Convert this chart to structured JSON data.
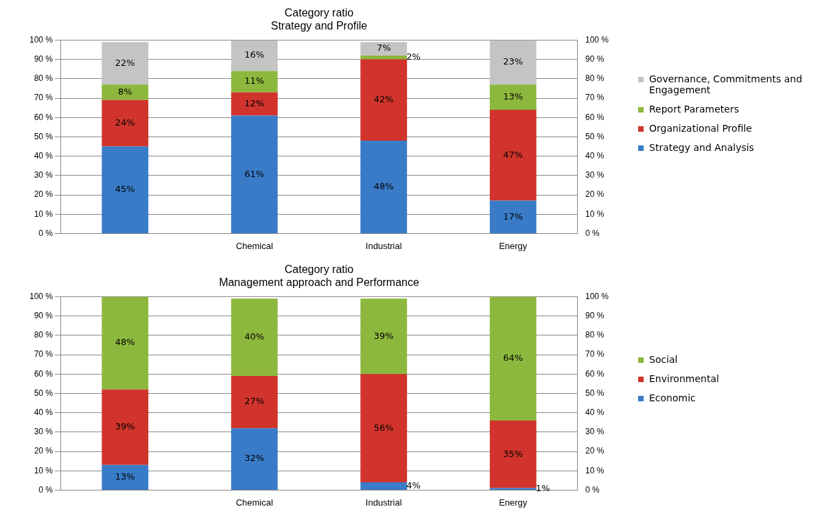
{
  "chart_data": [
    {
      "type": "bar",
      "title": "Category ratio",
      "subtitle": "Strategy and Profile",
      "categories": [
        null,
        "Chemical",
        "Industrial",
        "Energy"
      ],
      "stacked": true,
      "grid": "y",
      "legend": "right",
      "marker": "square",
      "ylim": [
        0,
        100
      ],
      "yticks": [
        {
          "value": 0,
          "label": "0 %"
        },
        {
          "value": 10,
          "label": "10 %"
        },
        {
          "value": 20,
          "label": "20 %"
        },
        {
          "value": 30,
          "label": "30 %"
        },
        {
          "value": 40,
          "label": "40 %"
        },
        {
          "value": 50,
          "label": "50 %"
        },
        {
          "value": 60,
          "label": "60 %"
        },
        {
          "value": 70,
          "label": "70 %"
        },
        {
          "value": 80,
          "label": "80 %"
        },
        {
          "value": 90,
          "label": "90 %"
        },
        {
          "value": 100,
          "label": "100 %"
        }
      ],
      "y2lim": [
        0,
        100
      ],
      "y2ticks": [
        {
          "value": 0,
          "label": "0 %"
        },
        {
          "value": 10,
          "label": "10 %"
        },
        {
          "value": 20,
          "label": "20 %"
        },
        {
          "value": 30,
          "label": "30 %"
        },
        {
          "value": 40,
          "label": "40 %"
        },
        {
          "value": 50,
          "label": "50 %"
        },
        {
          "value": 60,
          "label": "60 %"
        },
        {
          "value": 70,
          "label": "70 %"
        },
        {
          "value": 80,
          "label": "80 %"
        },
        {
          "value": 90,
          "label": "90 %"
        },
        {
          "value": 100,
          "label": "100 %"
        }
      ],
      "series": [
        {
          "name": "Strategy and Analysis",
          "color": "#3a7bc8",
          "values": [
            45,
            61,
            48,
            17
          ],
          "value_labels": [
            "45%",
            "61%",
            "48%",
            "17%"
          ]
        },
        {
          "name": "Organizational Profile",
          "color": "#d0342c",
          "values": [
            24,
            12,
            42,
            47
          ],
          "value_labels": [
            "24%",
            "12%",
            "42%",
            "47%"
          ]
        },
        {
          "name": "Report Parameters",
          "color": "#8db83e",
          "values": [
            8,
            11,
            2,
            13
          ],
          "value_labels": [
            "8%",
            "11%",
            "2%",
            "13%"
          ]
        },
        {
          "name": "Governance, Commitments and Engagement",
          "color": "#c4c4c4",
          "values": [
            22,
            16,
            7,
            23
          ],
          "value_labels": [
            "22%",
            "16%",
            "7%",
            "23%"
          ]
        }
      ]
    },
    {
      "type": "bar",
      "title": "Category ratio",
      "subtitle": "Management approach and Performance",
      "categories": [
        null,
        "Chemical",
        "Industrial",
        "Energy"
      ],
      "stacked": true,
      "grid": "y",
      "legend": "right",
      "marker": "square",
      "ylim": [
        0,
        100
      ],
      "yticks": [
        {
          "value": 0,
          "label": "0 %"
        },
        {
          "value": 10,
          "label": "10 %"
        },
        {
          "value": 20,
          "label": "20 %"
        },
        {
          "value": 30,
          "label": "30 %"
        },
        {
          "value": 40,
          "label": "40 %"
        },
        {
          "value": 50,
          "label": "50 %"
        },
        {
          "value": 60,
          "label": "60 %"
        },
        {
          "value": 70,
          "label": "70 %"
        },
        {
          "value": 80,
          "label": "80 %"
        },
        {
          "value": 90,
          "label": "90 %"
        },
        {
          "value": 100,
          "label": "100 %"
        }
      ],
      "y2lim": [
        0,
        100
      ],
      "y2ticks": [
        {
          "value": 0,
          "label": "0 %"
        },
        {
          "value": 10,
          "label": "10 %"
        },
        {
          "value": 20,
          "label": "20 %"
        },
        {
          "value": 30,
          "label": "30 %"
        },
        {
          "value": 40,
          "label": "40 %"
        },
        {
          "value": 50,
          "label": "50 %"
        },
        {
          "value": 60,
          "label": "60 %"
        },
        {
          "value": 70,
          "label": "70 %"
        },
        {
          "value": 80,
          "label": "80 %"
        },
        {
          "value": 90,
          "label": "90 %"
        },
        {
          "value": 100,
          "label": "100 %"
        }
      ],
      "series": [
        {
          "name": "Economic",
          "color": "#3a7bc8",
          "values": [
            13,
            32,
            4,
            1
          ],
          "value_labels": [
            "13%",
            "32%",
            "4%",
            "1%"
          ]
        },
        {
          "name": "Environmental",
          "color": "#d0342c",
          "values": [
            39,
            27,
            56,
            35
          ],
          "value_labels": [
            "39%",
            "27%",
            "56%",
            "35%"
          ]
        },
        {
          "name": "Social",
          "color": "#8db83e",
          "values": [
            48,
            40,
            39,
            64
          ],
          "value_labels": [
            "48%",
            "40%",
            "39%",
            "64%"
          ]
        }
      ]
    }
  ]
}
